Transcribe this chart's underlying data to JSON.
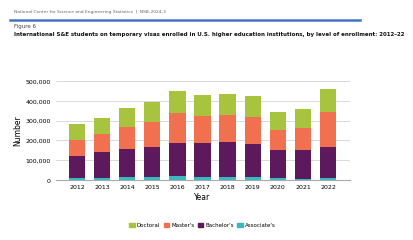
{
  "years": [
    2012,
    2013,
    2014,
    2015,
    2016,
    2017,
    2018,
    2019,
    2020,
    2021,
    2022
  ],
  "doctoral": [
    80000,
    85000,
    95000,
    100000,
    110000,
    105000,
    105000,
    105000,
    90000,
    95000,
    115000
  ],
  "masters": [
    80000,
    90000,
    110000,
    130000,
    150000,
    140000,
    140000,
    135000,
    100000,
    110000,
    180000
  ],
  "bachelors": [
    115000,
    130000,
    145000,
    150000,
    170000,
    170000,
    175000,
    170000,
    145000,
    145000,
    155000
  ],
  "associates": [
    8000,
    10000,
    13000,
    15000,
    18000,
    15000,
    15000,
    13000,
    8000,
    7000,
    10000
  ],
  "colors": {
    "doctoral": "#a8c43e",
    "masters": "#f07050",
    "bachelors": "#5c1a5c",
    "associates": "#3ab8c0"
  },
  "ylim": [
    0,
    500000
  ],
  "yticks": [
    0,
    100000,
    200000,
    300000,
    400000,
    500000
  ],
  "ytick_labels": [
    "0",
    "100,000",
    "200,000",
    "300,000",
    "400,000",
    "500,000"
  ],
  "xlabel": "Year",
  "ylabel": "Number",
  "header": "National Center for Science and Engineering Statistics  |  NSB-2024-3",
  "figure_label": "Figure 6",
  "title": "International S&E students on temporary visas enrolled in U.S. higher education institutions, by level of enrollment: 2012–22",
  "bar_width": 0.65
}
